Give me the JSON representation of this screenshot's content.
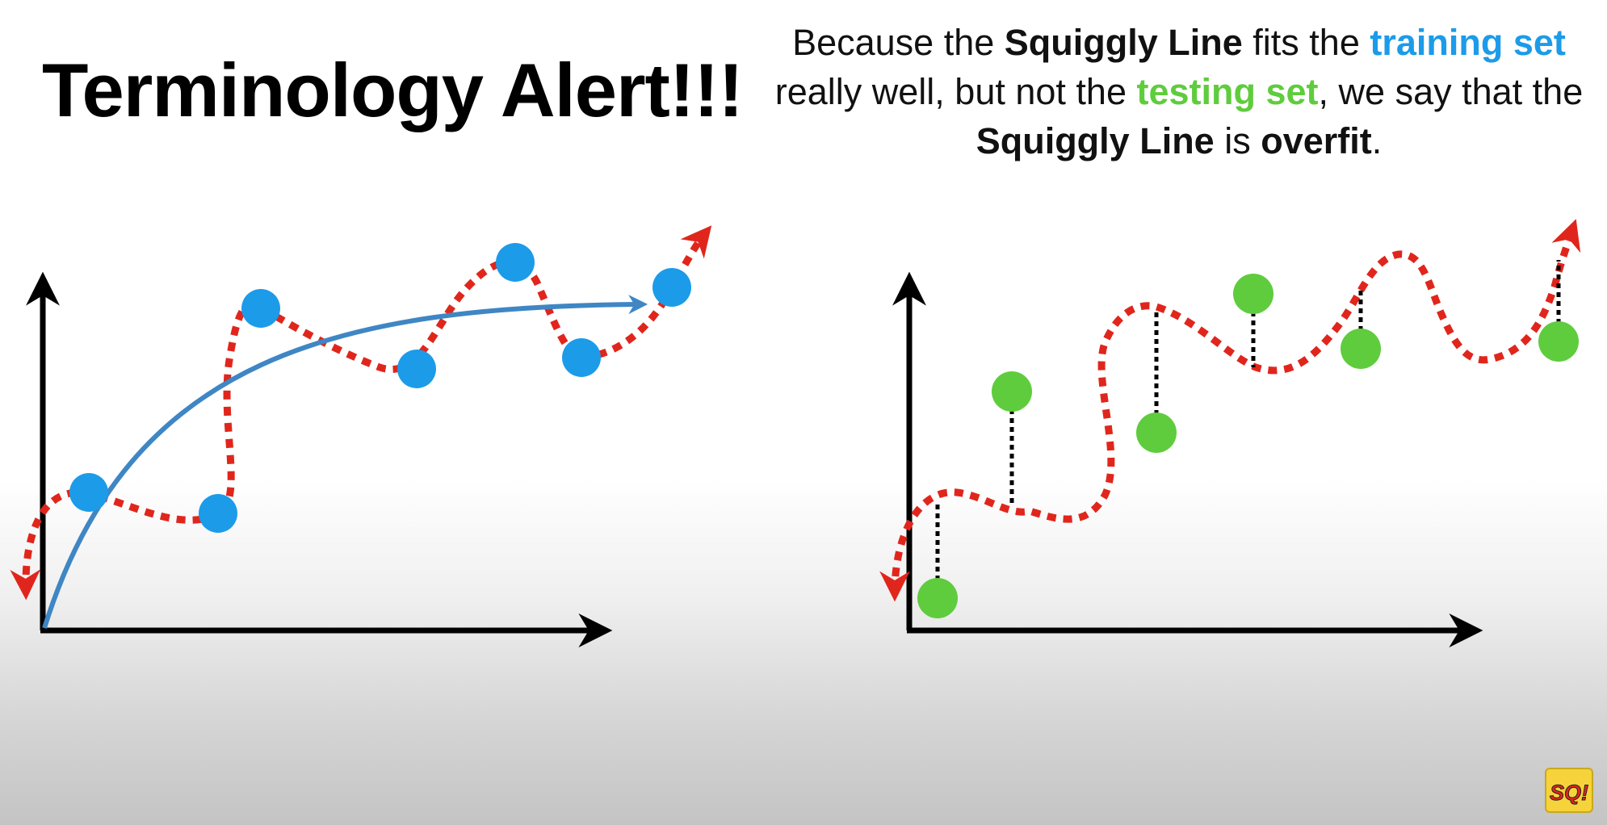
{
  "title": "Terminology Alert!!!",
  "caption": {
    "p1": "Because the ",
    "b1": "Squiggly Line",
    "p2": " fits the ",
    "training": "training set",
    "p3": " really well, but not the ",
    "testing": "testing set",
    "p4": ", we say that the ",
    "b2": "Squiggly Line",
    "p5": " is ",
    "b3": "overfit",
    "p6": "."
  },
  "logo": {
    "text": "SQ!"
  },
  "colors": {
    "training": "#1c9be9",
    "testing": "#5fcc3d",
    "squiggle": "#e0261c",
    "curve": "#3f86c4",
    "axes": "#000000"
  }
}
